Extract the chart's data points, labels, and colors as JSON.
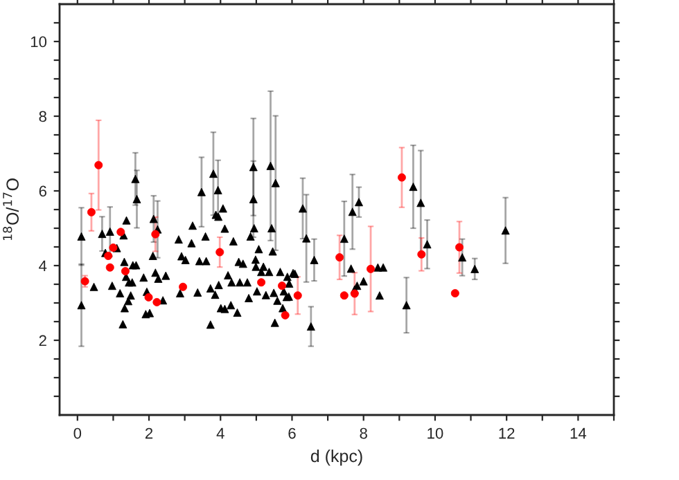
{
  "chart_data": {
    "type": "scatter",
    "xlabel": "d (kpc)",
    "ylabel": "$^{18}$O/$^{17}$O",
    "xlim": [
      -0.5,
      15
    ],
    "ylim": [
      0,
      11
    ],
    "xticks": [
      0,
      {
        "value": 1,
        "label": null
      },
      2,
      {
        "value": 3,
        "label": null
      },
      4,
      {
        "value": 5,
        "label": null
      },
      6,
      {
        "value": 7,
        "label": null
      },
      8,
      {
        "value": 9,
        "label": null
      },
      10,
      {
        "value": 11,
        "label": null
      },
      12,
      {
        "value": 13,
        "label": null
      },
      14,
      {
        "value": 15,
        "label": null
      }
    ],
    "yticks": [
      {
        "value": 0.5,
        "label": null
      },
      {
        "value": 1,
        "label": null
      },
      {
        "value": 1.5,
        "label": null
      },
      2,
      {
        "value": 2.5,
        "label": null
      },
      {
        "value": 3,
        "label": null
      },
      {
        "value": 3.5,
        "label": null
      },
      4,
      {
        "value": 4.5,
        "label": null
      },
      {
        "value": 5,
        "label": null
      },
      {
        "value": 5.5,
        "label": null
      },
      6,
      {
        "value": 6.5,
        "label": null
      },
      {
        "value": 7,
        "label": null
      },
      {
        "value": 7.5,
        "label": null
      },
      8,
      {
        "value": 8.5,
        "label": null
      },
      {
        "value": 9,
        "label": null
      },
      {
        "value": 9.5,
        "label": null
      },
      10,
      {
        "value": 10.5,
        "label": null
      }
    ],
    "grid": false,
    "legend": false,
    "series": [
      {
        "color": "#000000",
        "marker": "triangle",
        "x": [
          0.11,
          0.11,
          0.46,
          0.69,
          0.78,
          0.91,
          0.97,
          1.1,
          1.19,
          1.27,
          1.29,
          1.31,
          1.32,
          1.36,
          1.37,
          1.42,
          1.44,
          1.49,
          1.53,
          1.55,
          1.62,
          1.66,
          1.64,
          1.85,
          1.91,
          1.94,
          2.02,
          2.11,
          2.13,
          2.18,
          2.24,
          2.26,
          2.39,
          2.47,
          2.83,
          2.87,
          2.91,
          3.02,
          3.22,
          3.19,
          3.36,
          3.41,
          3.47,
          3.58,
          3.6,
          3.72,
          3.72,
          3.8,
          3.85,
          3.87,
          3.93,
          3.94,
          3.95,
          4.01,
          4.07,
          4.12,
          4.12,
          4.21,
          4.29,
          4.31,
          4.36,
          4.47,
          4.51,
          4.54,
          4.63,
          4.75,
          4.79,
          4.84,
          4.92,
          4.92,
          4.94,
          4.98,
          4.99,
          5.02,
          5.07,
          5.14,
          5.2,
          5.27,
          5.36,
          5.4,
          5.43,
          5.46,
          5.49,
          5.52,
          5.54,
          5.59,
          5.67,
          5.74,
          5.77,
          5.85,
          5.87,
          5.92,
          5.91,
          6.03,
          6.08,
          6.3,
          6.4,
          6.53,
          6.62,
          7.46,
          7.65,
          7.69,
          7.75,
          7.82,
          7.87,
          8.0,
          8.4,
          8.45,
          8.55,
          9.2,
          9.39,
          9.6,
          9.78,
          10.76,
          11.11,
          11.97
        ],
        "values": [
          4.78,
          2.94,
          3.43,
          4.85,
          4.34,
          4.91,
          3.46,
          4.47,
          3.26,
          2.43,
          4.81,
          4.1,
          2.86,
          3.7,
          5.21,
          3.05,
          3.55,
          3.2,
          3.55,
          4.01,
          6.32,
          5.78,
          4.01,
          3.68,
          2.7,
          3.3,
          2.73,
          4.26,
          5.25,
          3.81,
          4.97,
          3.65,
          3.07,
          3.73,
          4.7,
          3.26,
          4.25,
          4.15,
          5.07,
          4.6,
          3.28,
          4.12,
          5.97,
          4.78,
          4.12,
          3.39,
          2.42,
          6.46,
          3.22,
          5.36,
          6.02,
          5.31,
          3.48,
          2.86,
          5.53,
          4.99,
          2.84,
          3.74,
          2.94,
          3.55,
          4.65,
          2.74,
          4.1,
          3.55,
          4.05,
          3.55,
          3.13,
          4.78,
          5.78,
          6.64,
          5.0,
          4.16,
          3.97,
          3.31,
          4.44,
          3.83,
          3.97,
          3.21,
          3.83,
          6.67,
          5.0,
          4.38,
          3.27,
          2.47,
          6.21,
          3.06,
          3.83,
          2.86,
          3.31,
          3.16,
          3.7,
          3.52,
          3.17,
          3.8,
          3.78,
          5.53,
          4.73,
          2.37,
          4.15,
          4.72,
          3.92,
          5.44,
          3.36,
          3.46,
          5.7,
          3.58,
          3.95,
          3.2,
          3.95,
          2.94,
          6.11,
          5.68,
          4.57,
          4.22,
          3.91,
          4.94
        ],
        "errors": [
          0.77,
          1.1,
          null,
          0.46,
          null,
          0.66,
          null,
          null,
          null,
          null,
          null,
          null,
          null,
          null,
          null,
          null,
          null,
          null,
          null,
          null,
          0.7,
          0.77,
          null,
          null,
          null,
          null,
          null,
          null,
          0.62,
          null,
          0.76,
          null,
          null,
          null,
          null,
          null,
          null,
          null,
          null,
          null,
          null,
          null,
          0.93,
          null,
          null,
          null,
          null,
          1.11,
          null,
          null,
          0.8,
          null,
          null,
          null,
          null,
          null,
          null,
          null,
          null,
          null,
          null,
          null,
          null,
          null,
          null,
          null,
          null,
          null,
          1.02,
          1.3,
          null,
          null,
          null,
          null,
          null,
          null,
          null,
          null,
          null,
          2.0,
          null,
          null,
          null,
          null,
          1.8,
          null,
          null,
          null,
          null,
          null,
          null,
          null,
          null,
          null,
          null,
          0.81,
          1.17,
          0.53,
          0.56,
          1.0,
          null,
          1.0,
          null,
          null,
          0.4,
          null,
          null,
          null,
          null,
          0.74,
          1.11,
          1.4,
          0.65,
          0.49,
          0.28,
          0.88
        ]
      },
      {
        "color": "#ff0000",
        "marker": "circle",
        "x": [
          0.21,
          0.39,
          0.59,
          0.86,
          0.91,
          1.0,
          1.21,
          1.34,
          1.99,
          2.18,
          2.22,
          2.95,
          3.98,
          5.14,
          5.72,
          5.81,
          6.16,
          7.33,
          7.46,
          7.75,
          8.2,
          9.07,
          9.62,
          10.56,
          10.68
        ],
        "values": [
          3.58,
          5.43,
          6.69,
          4.26,
          3.95,
          4.48,
          4.9,
          3.85,
          3.15,
          4.84,
          3.02,
          3.43,
          4.36,
          3.55,
          3.46,
          2.67,
          3.2,
          4.22,
          3.2,
          3.25,
          3.91,
          6.36,
          4.3,
          3.26,
          4.49
        ],
        "errors": [
          0.15,
          0.5,
          1.2,
          null,
          null,
          null,
          null,
          null,
          null,
          0.46,
          null,
          null,
          0.4,
          null,
          null,
          null,
          0.5,
          0.59,
          null,
          0.56,
          1.14,
          0.8,
          0.44,
          null,
          0.69
        ]
      }
    ]
  }
}
